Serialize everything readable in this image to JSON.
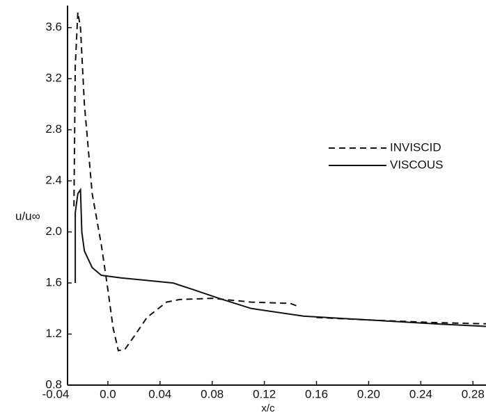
{
  "chart_data": {
    "type": "line",
    "x_label": "x/c",
    "y_label": "u/u∞",
    "xlim": [
      -0.04,
      0.29
    ],
    "ylim": [
      0.8,
      3.8
    ],
    "xticks": [
      -0.04,
      {
        "value": 0,
        "label": "0.0"
      },
      0.04,
      0.08,
      0.12,
      0.16,
      {
        "value": 0.2,
        "label": "0.20"
      },
      0.24,
      0.28
    ],
    "yticks": [
      0.8,
      1.2,
      1.6,
      {
        "value": 2,
        "label": "2.0"
      },
      2.4,
      2.8,
      3.2,
      3.6
    ],
    "legend": "upper right",
    "series": [
      {
        "name": "INVISCID",
        "color": "#111111",
        "dash": true,
        "x": [
          -0.026,
          -0.025,
          -0.023,
          -0.021,
          -0.018,
          -0.012,
          -0.005,
          0.0,
          0.004,
          0.008,
          0.013,
          0.02,
          0.03,
          0.045,
          0.055,
          0.08,
          0.11,
          0.14,
          0.145,
          null,
          0.16,
          0.2,
          0.25,
          0.29
        ],
        "values": [
          2.2,
          3.3,
          3.72,
          3.6,
          3.0,
          2.3,
          1.9,
          1.55,
          1.25,
          1.07,
          1.08,
          1.18,
          1.33,
          1.45,
          1.47,
          1.48,
          1.45,
          1.44,
          1.42,
          null,
          1.33,
          1.31,
          1.29,
          1.28
        ]
      },
      {
        "name": "VISCOUS",
        "color": "#111111",
        "dash": false,
        "x": [
          -0.025,
          -0.025,
          -0.023,
          -0.021,
          -0.02,
          -0.018,
          -0.012,
          -0.005,
          0.01,
          0.03,
          0.05,
          0.065,
          0.085,
          0.11,
          0.15,
          0.2,
          0.25,
          0.29
        ],
        "values": [
          1.6,
          2.15,
          2.3,
          2.33,
          2.0,
          1.85,
          1.72,
          1.66,
          1.64,
          1.62,
          1.6,
          1.55,
          1.48,
          1.4,
          1.34,
          1.31,
          1.28,
          1.26
        ]
      }
    ]
  }
}
